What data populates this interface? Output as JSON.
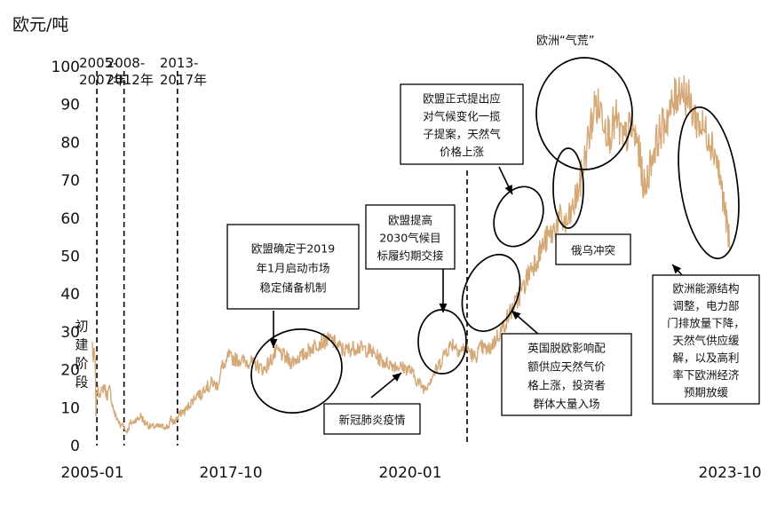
{
  "chart_data": {
    "type": "line",
    "ylabel": "欧元/吨",
    "ylim": [
      0,
      100
    ],
    "yticks": [
      0,
      10,
      20,
      30,
      40,
      50,
      60,
      70,
      80,
      90,
      100
    ],
    "xlim": [
      "2005-01",
      "2023-10"
    ],
    "xtick_labels": [
      "2005-01",
      "2017-10",
      "2020-01",
      "2023-10"
    ],
    "xtick_values": [
      "2005-01",
      "2017-10",
      "2020-01",
      "2023-10"
    ],
    "grid": false,
    "line_color": "#d4a877",
    "series": [
      {
        "points": [
          [
            "2005-01",
            27
          ],
          [
            "2005-02",
            22
          ],
          [
            "2005-03",
            25
          ],
          [
            "2005-04",
            22
          ],
          [
            "2005-05",
            9
          ],
          [
            "2005-06",
            15
          ],
          [
            "2005-08",
            14
          ],
          [
            "2005-11",
            14
          ],
          [
            "2006-02",
            16
          ],
          [
            "2006-05",
            13
          ],
          [
            "2006-08",
            15
          ],
          [
            "2006-11",
            11
          ],
          [
            "2007-02",
            8
          ],
          [
            "2007-05",
            7
          ],
          [
            "2007-08",
            5
          ],
          [
            "2007-11",
            6
          ],
          [
            "2008-01",
            4
          ],
          [
            "2008-04",
            4
          ],
          [
            "2008-07",
            6
          ],
          [
            "2008-10",
            6
          ],
          [
            "2009-01",
            7
          ],
          [
            "2009-04",
            7
          ],
          [
            "2009-07",
            8
          ],
          [
            "2009-10",
            6
          ],
          [
            "2010-01",
            6
          ],
          [
            "2010-04",
            5
          ],
          [
            "2010-07",
            5
          ],
          [
            "2010-10",
            5
          ],
          [
            "2011-01",
            5
          ],
          [
            "2011-04",
            5
          ],
          [
            "2011-07",
            5
          ],
          [
            "2011-10",
            5
          ],
          [
            "2012-01",
            5
          ],
          [
            "2012-04",
            7
          ],
          [
            "2012-07",
            6
          ],
          [
            "2012-10",
            7
          ],
          [
            "2013-01",
            8
          ],
          [
            "2013-04",
            9
          ],
          [
            "2013-07",
            9
          ],
          [
            "2013-10",
            10
          ],
          [
            "2014-01",
            11
          ],
          [
            "2014-04",
            12
          ],
          [
            "2014-07",
            13
          ],
          [
            "2014-10",
            14
          ],
          [
            "2015-01",
            13
          ],
          [
            "2015-04",
            15
          ],
          [
            "2015-07",
            16
          ],
          [
            "2015-10",
            15
          ],
          [
            "2016-01",
            17
          ],
          [
            "2016-04",
            16
          ],
          [
            "2016-07",
            16
          ],
          [
            "2016-10",
            18
          ],
          [
            "2017-01",
            22
          ],
          [
            "2017-04",
            20
          ],
          [
            "2017-07",
            24
          ],
          [
            "2017-10",
            23
          ],
          [
            "2018-01",
            22
          ],
          [
            "2018-03",
            20
          ],
          [
            "2018-05",
            25
          ],
          [
            "2018-07",
            22
          ],
          [
            "2018-09",
            24
          ],
          [
            "2018-11",
            27
          ],
          [
            "2019-01",
            28
          ],
          [
            "2019-03",
            25
          ],
          [
            "2019-05",
            26
          ],
          [
            "2019-07",
            25
          ],
          [
            "2019-09",
            22
          ],
          [
            "2019-11",
            21
          ],
          [
            "2020-01",
            20
          ],
          [
            "2020-02",
            17
          ],
          [
            "2020-03",
            15
          ],
          [
            "2020-04",
            18
          ],
          [
            "2020-05",
            21
          ],
          [
            "2020-06",
            25
          ],
          [
            "2020-07",
            27
          ],
          [
            "2020-08",
            25
          ],
          [
            "2020-09",
            26
          ],
          [
            "2020-10",
            23
          ],
          [
            "2020-11",
            26
          ],
          [
            "2020-12",
            25
          ],
          [
            "2021-01",
            28
          ],
          [
            "2021-02",
            31
          ],
          [
            "2021-03",
            35
          ],
          [
            "2021-04",
            38
          ],
          [
            "2021-05",
            42
          ],
          [
            "2021-06",
            47
          ],
          [
            "2021-07",
            50
          ],
          [
            "2021-08",
            54
          ],
          [
            "2021-09",
            56
          ],
          [
            "2021-10",
            60
          ],
          [
            "2021-11",
            58
          ],
          [
            "2021-12",
            63
          ],
          [
            "2022-01",
            70
          ],
          [
            "2022-02",
            80
          ],
          [
            "2022-03",
            90
          ],
          [
            "2022-04",
            88
          ],
          [
            "2022-05",
            82
          ],
          [
            "2022-06",
            86
          ],
          [
            "2022-07",
            80
          ],
          [
            "2022-08",
            84
          ],
          [
            "2022-09",
            80
          ],
          [
            "2022-10",
            67
          ],
          [
            "2022-11",
            76
          ],
          [
            "2022-12",
            82
          ],
          [
            "2023-01",
            86
          ],
          [
            "2023-02",
            90
          ],
          [
            "2023-03",
            95
          ],
          [
            "2023-04",
            92
          ],
          [
            "2023-05",
            87
          ],
          [
            "2023-06",
            84
          ],
          [
            "2023-07",
            82
          ],
          [
            "2023-08",
            77
          ],
          [
            "2023-09",
            66
          ],
          [
            "2023-10",
            52
          ]
        ]
      }
    ],
    "period_lines": [
      {
        "x": "2005-06",
        "label_top": "2005-",
        "label_bottom": "2007年"
      },
      {
        "x": "2007-12",
        "label_top": "2008-",
        "label_bottom": "2012年"
      },
      {
        "x": "2012-11",
        "label_top": "2013-",
        "label_bottom": "2017年"
      },
      {
        "x": "2020-09"
      }
    ],
    "annotations": {
      "initial_phase": [
        "初",
        "建",
        "阶",
        "段"
      ],
      "box_msr": [
        "欧盟确定于2019",
        "年1月启动市场",
        "稳定储备机制"
      ],
      "box_covid": [
        "新冠肺炎疫情"
      ],
      "box_2030": [
        "欧盟提高",
        "2030气候目",
        "标履约期交接"
      ],
      "box_climate_package": [
        "欧盟正式提出应",
        "对气候变化一揽",
        "子提案，天然气",
        "价格上涨"
      ],
      "box_brexit": [
        "英国脱欧影响配",
        "额供应天然气价",
        "格上涨，投资者",
        "群体大量入场"
      ],
      "label_energy_crisis": "欧洲“气荒”",
      "box_ukraine": [
        "俄乌冲突"
      ],
      "box_restructure": [
        "欧洲能源结构",
        "调整，电力部",
        "门排放量下降，",
        "天然气供应缓",
        "解，以及高利",
        "率下欧洲经济",
        "预期放缓"
      ]
    }
  }
}
